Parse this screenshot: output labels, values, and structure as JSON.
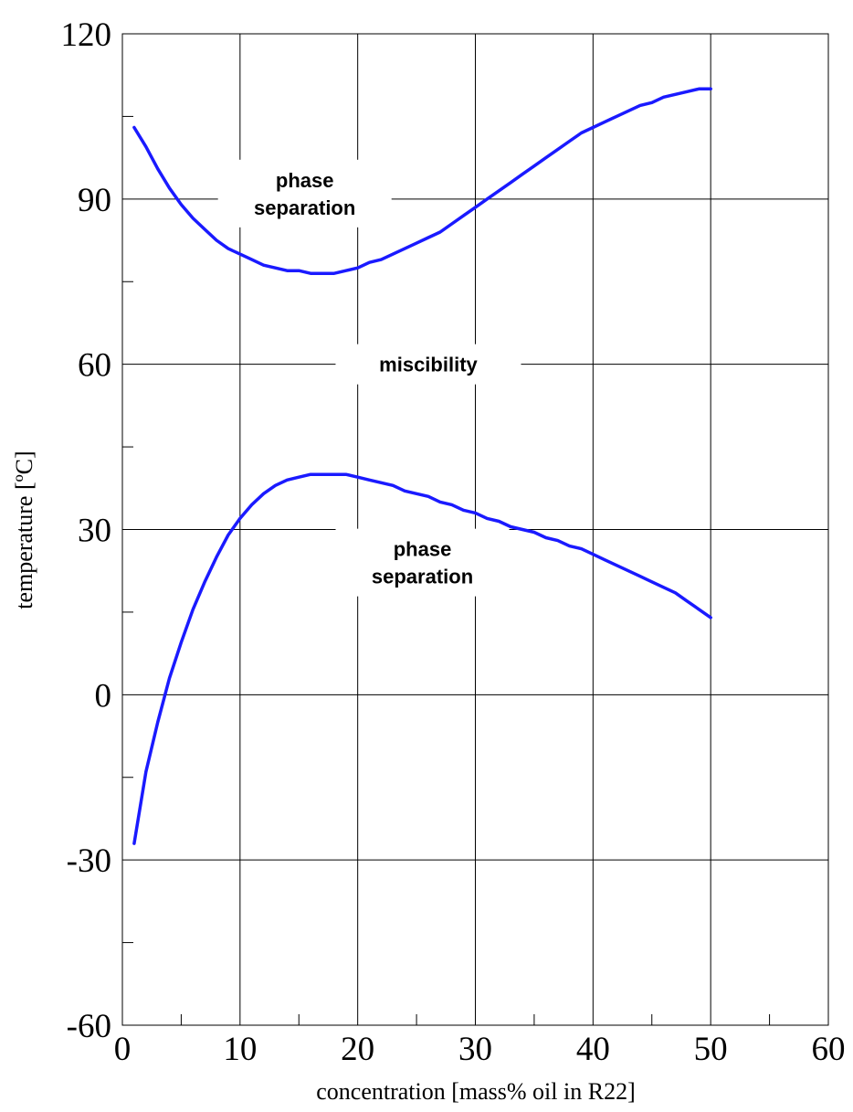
{
  "chart_data": {
    "type": "line",
    "xlabel": "concentration [mass% oil in R22]",
    "ylabel": "temperature [ºC]",
    "xlim": [
      0,
      60
    ],
    "ylim": [
      -60,
      120
    ],
    "x_ticks": [
      0,
      10,
      20,
      30,
      40,
      50,
      60
    ],
    "x_tick_labels": [
      "0",
      "10",
      "20",
      "30",
      "40",
      "50",
      "60"
    ],
    "y_ticks": [
      -60,
      -30,
      0,
      30,
      60,
      90,
      120
    ],
    "y_tick_labels": [
      "-60",
      "-30",
      "0",
      "30",
      "60",
      "90",
      "120"
    ],
    "x_minor_ticks": [
      5,
      15,
      25,
      35,
      45,
      55
    ],
    "y_minor_ticks": [
      -45,
      -15,
      15,
      45,
      75,
      105
    ],
    "grid": true,
    "line_color": "#1a1aff",
    "series": [
      {
        "values": [
          [
            1,
            103
          ],
          [
            2,
            99.5
          ],
          [
            3,
            95.5
          ],
          [
            4,
            92
          ],
          [
            5,
            89
          ],
          [
            6,
            86.5
          ],
          [
            7,
            84.5
          ],
          [
            8,
            82.5
          ],
          [
            9,
            81
          ],
          [
            10,
            80
          ],
          [
            11,
            79
          ],
          [
            12,
            78
          ],
          [
            13,
            77.5
          ],
          [
            14,
            77
          ],
          [
            15,
            77
          ],
          [
            16,
            76.5
          ],
          [
            17,
            76.5
          ],
          [
            18,
            76.5
          ],
          [
            19,
            77
          ],
          [
            20,
            77.5
          ],
          [
            21,
            78.5
          ],
          [
            22,
            79
          ],
          [
            23,
            80
          ],
          [
            24,
            81
          ],
          [
            25,
            82
          ],
          [
            26,
            83
          ],
          [
            27,
            84
          ],
          [
            28,
            85.5
          ],
          [
            29,
            87
          ],
          [
            30,
            88.5
          ],
          [
            31,
            90
          ],
          [
            32,
            91.5
          ],
          [
            33,
            93
          ],
          [
            34,
            94.5
          ],
          [
            35,
            96
          ],
          [
            36,
            97.5
          ],
          [
            37,
            99
          ],
          [
            38,
            100.5
          ],
          [
            39,
            102
          ],
          [
            40,
            103
          ],
          [
            41,
            104
          ],
          [
            42,
            105
          ],
          [
            43,
            106
          ],
          [
            44,
            107
          ],
          [
            45,
            107.5
          ],
          [
            46,
            108.5
          ],
          [
            47,
            109
          ],
          [
            48,
            109.5
          ],
          [
            49,
            110
          ],
          [
            50,
            110
          ]
        ]
      },
      {
        "values": [
          [
            1,
            -27
          ],
          [
            2,
            -14
          ],
          [
            3,
            -5
          ],
          [
            4,
            3
          ],
          [
            5,
            9.5
          ],
          [
            6,
            15.5
          ],
          [
            7,
            20.5
          ],
          [
            8,
            25
          ],
          [
            9,
            29
          ],
          [
            10,
            32
          ],
          [
            11,
            34.5
          ],
          [
            12,
            36.5
          ],
          [
            13,
            38
          ],
          [
            14,
            39
          ],
          [
            15,
            39.5
          ],
          [
            16,
            40
          ],
          [
            17,
            40
          ],
          [
            18,
            40
          ],
          [
            19,
            40
          ],
          [
            20,
            39.5
          ],
          [
            21,
            39
          ],
          [
            22,
            38.5
          ],
          [
            23,
            38
          ],
          [
            24,
            37
          ],
          [
            25,
            36.5
          ],
          [
            26,
            36
          ],
          [
            27,
            35
          ],
          [
            28,
            34.5
          ],
          [
            29,
            33.5
          ],
          [
            30,
            33
          ],
          [
            31,
            32
          ],
          [
            32,
            31.5
          ],
          [
            33,
            30.5
          ],
          [
            34,
            30
          ],
          [
            35,
            29.5
          ],
          [
            36,
            28.5
          ],
          [
            37,
            28
          ],
          [
            38,
            27
          ],
          [
            39,
            26.5
          ],
          [
            40,
            25.5
          ],
          [
            41,
            24.5
          ],
          [
            42,
            23.5
          ],
          [
            43,
            22.5
          ],
          [
            44,
            21.5
          ],
          [
            45,
            20.5
          ],
          [
            46,
            19.5
          ],
          [
            47,
            18.5
          ],
          [
            48,
            17
          ],
          [
            49,
            15.5
          ],
          [
            50,
            14
          ]
        ]
      }
    ],
    "annotations": [
      {
        "lines": [
          "phase",
          "separation"
        ],
        "x": 15.5,
        "y": 91
      },
      {
        "lines": [
          "miscibility"
        ],
        "x": 26,
        "y": 60
      },
      {
        "lines": [
          "phase",
          "separation"
        ],
        "x": 25.5,
        "y": 24
      }
    ]
  }
}
